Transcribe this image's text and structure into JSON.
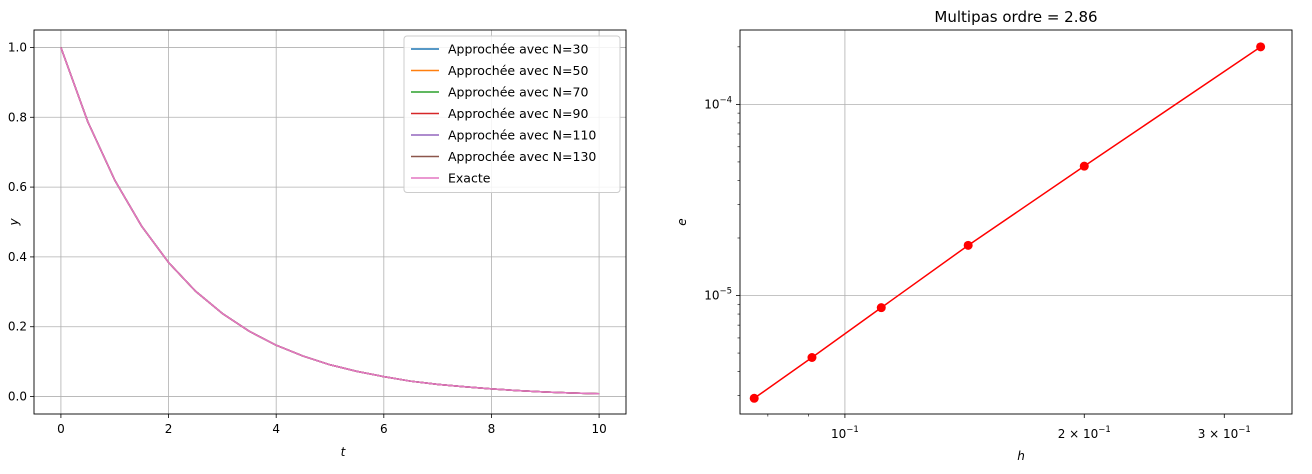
{
  "chart_data": [
    {
      "type": "line",
      "title": "",
      "xlabel": "t",
      "ylabel": "y",
      "xlim": [
        -0.5,
        10.5
      ],
      "ylim": [
        -0.05,
        1.05
      ],
      "xticks": [
        "0",
        "2",
        "4",
        "6",
        "8",
        "10"
      ],
      "yticks": [
        "0.0",
        "0.2",
        "0.4",
        "0.6",
        "0.8",
        "1.0"
      ],
      "grid": true,
      "legend_position": "top-right",
      "function_note": "",
      "x": [
        0,
        0.5,
        1,
        1.5,
        2,
        2.5,
        3,
        3.5,
        4,
        4.5,
        5,
        5.5,
        6,
        6.5,
        7,
        7.5,
        8,
        8.5,
        9,
        9.5,
        10
      ],
      "series": [
        {
          "name": "Approchée avec N=30",
          "color": "#1f77b4",
          "values": [
            1.0,
            0.787,
            0.62,
            0.488,
            0.384,
            0.302,
            0.238,
            0.187,
            0.147,
            0.116,
            0.091,
            0.072,
            0.057,
            0.044,
            0.035,
            0.028,
            0.022,
            0.017,
            0.013,
            0.01,
            0.008
          ]
        },
        {
          "name": "Approchée avec N=50",
          "color": "#ff7f0e",
          "values": [
            1.0,
            0.787,
            0.62,
            0.488,
            0.384,
            0.302,
            0.238,
            0.187,
            0.147,
            0.116,
            0.091,
            0.072,
            0.057,
            0.044,
            0.035,
            0.028,
            0.022,
            0.017,
            0.013,
            0.01,
            0.008
          ]
        },
        {
          "name": "Approchée avec N=70",
          "color": "#2ca02c",
          "values": [
            1.0,
            0.787,
            0.62,
            0.488,
            0.384,
            0.302,
            0.238,
            0.187,
            0.147,
            0.116,
            0.091,
            0.072,
            0.057,
            0.044,
            0.035,
            0.028,
            0.022,
            0.017,
            0.013,
            0.01,
            0.008
          ]
        },
        {
          "name": "Approchée avec N=90",
          "color": "#d62728",
          "values": [
            1.0,
            0.787,
            0.62,
            0.488,
            0.384,
            0.302,
            0.238,
            0.187,
            0.147,
            0.116,
            0.091,
            0.072,
            0.057,
            0.044,
            0.035,
            0.028,
            0.022,
            0.017,
            0.013,
            0.01,
            0.008
          ]
        },
        {
          "name": "Approchée avec N=110",
          "color": "#9467bd",
          "values": [
            1.0,
            0.787,
            0.62,
            0.488,
            0.384,
            0.302,
            0.238,
            0.187,
            0.147,
            0.116,
            0.091,
            0.072,
            0.057,
            0.044,
            0.035,
            0.028,
            0.022,
            0.017,
            0.013,
            0.01,
            0.008
          ]
        },
        {
          "name": "Approchée avec N=130",
          "color": "#8c564b",
          "values": [
            1.0,
            0.787,
            0.62,
            0.488,
            0.384,
            0.302,
            0.238,
            0.187,
            0.147,
            0.116,
            0.091,
            0.072,
            0.057,
            0.044,
            0.035,
            0.028,
            0.022,
            0.017,
            0.013,
            0.01,
            0.008
          ]
        },
        {
          "name": "Exacte",
          "color": "#e377c2",
          "values": [
            1.0,
            0.787,
            0.62,
            0.488,
            0.384,
            0.302,
            0.238,
            0.187,
            0.147,
            0.116,
            0.091,
            0.072,
            0.057,
            0.044,
            0.035,
            0.028,
            0.022,
            0.017,
            0.013,
            0.01,
            0.008
          ]
        }
      ]
    },
    {
      "type": "line",
      "title": "Multipas ordre = 2.86",
      "xlabel": "h",
      "ylabel": "e",
      "xscale": "log",
      "yscale": "log",
      "xlim": [
        0.0738,
        0.365
      ],
      "ylim": [
        2.4e-06,
        0.000245
      ],
      "grid": true,
      "markers": true,
      "color": "#ff0000",
      "major_xticks": [
        {
          "value": 0.1,
          "base": "10",
          "exp": "−1",
          "coef": ""
        },
        {
          "value": 0.2,
          "base": "10",
          "exp": "−1",
          "coef": "2 × "
        },
        {
          "value": 0.3,
          "base": "10",
          "exp": "−1",
          "coef": "3 × "
        }
      ],
      "major_yticks": [
        {
          "value": 1e-05,
          "base": "10",
          "exp": "−5"
        },
        {
          "value": 0.0001,
          "base": "10",
          "exp": "−4"
        }
      ],
      "x": [
        0.0769,
        0.0909,
        0.1111,
        0.1429,
        0.2,
        0.3333
      ],
      "series": [
        {
          "name": "",
          "values": [
            2.9e-06,
            4.74e-06,
            8.64e-06,
            1.83e-05,
            4.75e-05,
            0.0002
          ]
        }
      ]
    }
  ]
}
